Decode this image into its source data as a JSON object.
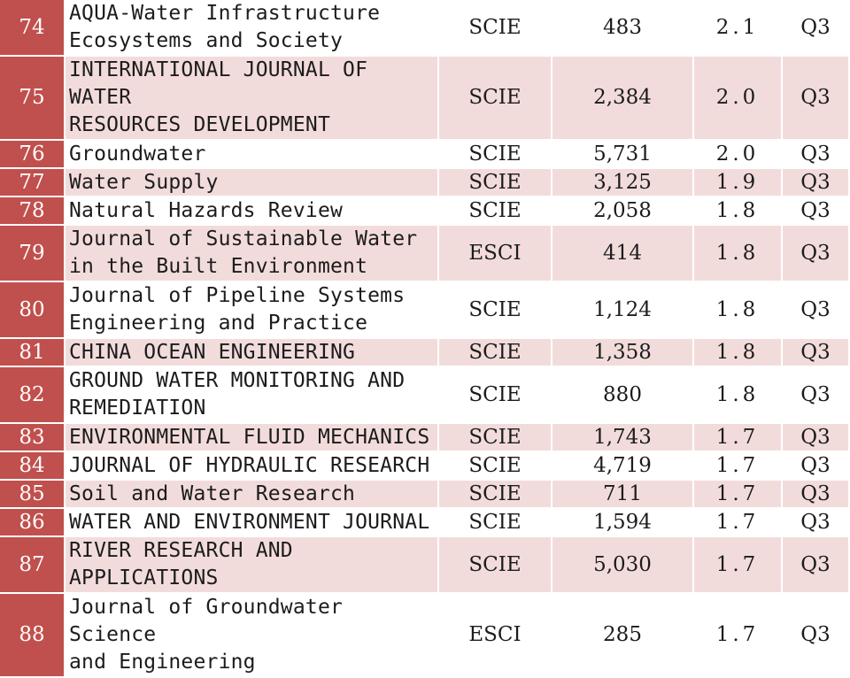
{
  "colors": {
    "rank_bg": "#c0504d",
    "stripe_bg": "#f2dcdb",
    "plain_bg": "#ffffff"
  },
  "rows": [
    {
      "rank": "74",
      "name_lines": [
        "AQUA-Water Infrastructure",
        "Ecosystems and Society"
      ],
      "db": "SCIE",
      "citations": "483",
      "impact": "2.1",
      "quartile": "Q3"
    },
    {
      "rank": "75",
      "name_lines": [
        "INTERNATIONAL JOURNAL OF WATER",
        "RESOURCES DEVELOPMENT"
      ],
      "db": "SCIE",
      "citations": "2,384",
      "impact": "2.0",
      "quartile": "Q3"
    },
    {
      "rank": "76",
      "name_lines": [
        "Groundwater"
      ],
      "db": "SCIE",
      "citations": "5,731",
      "impact": "2.0",
      "quartile": "Q3"
    },
    {
      "rank": "77",
      "name_lines": [
        "Water Supply"
      ],
      "db": "SCIE",
      "citations": "3,125",
      "impact": "1.9",
      "quartile": "Q3"
    },
    {
      "rank": "78",
      "name_lines": [
        "Natural Hazards Review"
      ],
      "db": "SCIE",
      "citations": "2,058",
      "impact": "1.8",
      "quartile": "Q3"
    },
    {
      "rank": "79",
      "name_lines": [
        "Journal of Sustainable Water",
        "in the Built Environment"
      ],
      "db": "ESCI",
      "citations": "414",
      "impact": "1.8",
      "quartile": "Q3"
    },
    {
      "rank": "80",
      "name_lines": [
        "Journal of Pipeline Systems",
        "Engineering and Practice"
      ],
      "db": "SCIE",
      "citations": "1,124",
      "impact": "1.8",
      "quartile": "Q3"
    },
    {
      "rank": "81",
      "name_lines": [
        "CHINA OCEAN ENGINEERING"
      ],
      "db": "SCIE",
      "citations": "1,358",
      "impact": "1.8",
      "quartile": "Q3"
    },
    {
      "rank": "82",
      "name_lines": [
        "GROUND WATER MONITORING AND",
        "REMEDIATION"
      ],
      "db": "SCIE",
      "citations": "880",
      "impact": "1.8",
      "quartile": "Q3"
    },
    {
      "rank": "83",
      "name_lines": [
        "ENVIRONMENTAL FLUID MECHANICS"
      ],
      "db": "SCIE",
      "citations": "1,743",
      "impact": "1.7",
      "quartile": "Q3"
    },
    {
      "rank": "84",
      "name_lines": [
        "JOURNAL OF HYDRAULIC RESEARCH"
      ],
      "db": "SCIE",
      "citations": "4,719",
      "impact": "1.7",
      "quartile": "Q3"
    },
    {
      "rank": "85",
      "name_lines": [
        "Soil and Water Research"
      ],
      "db": "SCIE",
      "citations": "711",
      "impact": "1.7",
      "quartile": "Q3"
    },
    {
      "rank": "86",
      "name_lines": [
        "WATER AND ENVIRONMENT JOURNAL"
      ],
      "db": "SCIE",
      "citations": "1,594",
      "impact": "1.7",
      "quartile": "Q3"
    },
    {
      "rank": "87",
      "name_lines": [
        "RIVER RESEARCH AND",
        "APPLICATIONS"
      ],
      "db": "SCIE",
      "citations": "5,030",
      "impact": "1.7",
      "quartile": "Q3"
    },
    {
      "rank": "88",
      "name_lines": [
        "Journal of Groundwater Science",
        "and Engineering"
      ],
      "db": "ESCI",
      "citations": "285",
      "impact": "1.7",
      "quartile": "Q3"
    }
  ]
}
